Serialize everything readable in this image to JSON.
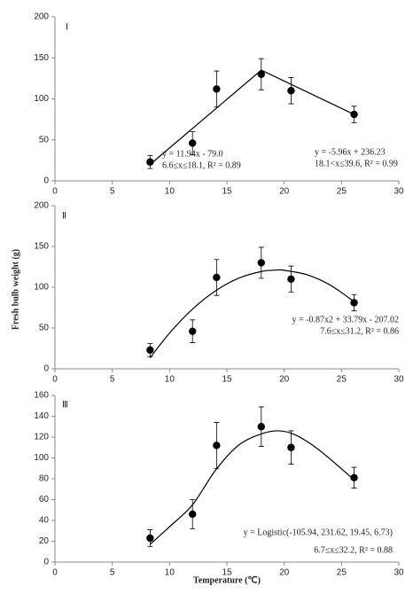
{
  "chart_data": [
    {
      "type": "scatter",
      "label": "Ⅰ",
      "color": "#000000",
      "x": [
        8.3,
        12.0,
        14.1,
        18.0,
        20.6,
        26.1
      ],
      "values": [
        23,
        46,
        112,
        130,
        110,
        81
      ],
      "errors": [
        8,
        14,
        22,
        19,
        16,
        10
      ],
      "fit": {
        "x": [
          8.3,
          18.0,
          26.1
        ],
        "values": [
          20,
          135,
          81
        ],
        "smooth": false
      },
      "annotations": [
        "y = 11.94x - 79.0",
        "6.6≤x≤18.1, R² = 0.89",
        "y = -5.96x + 236.23",
        "18.1<x≤39.6, R² = 0.99"
      ],
      "xlim": [
        0,
        30
      ],
      "xticks": [
        0,
        5,
        10,
        15,
        20,
        25,
        30
      ],
      "ylim": [
        0,
        200
      ],
      "yticks": [
        0,
        50,
        100,
        150,
        200
      ]
    },
    {
      "type": "scatter",
      "label": "Ⅱ",
      "color": "#000000",
      "y_label": "Fresh bulb weight (g)",
      "x": [
        8.3,
        12.0,
        14.1,
        18.0,
        20.6,
        26.1
      ],
      "values": [
        23,
        46,
        112,
        130,
        110,
        81
      ],
      "errors": [
        8,
        14,
        22,
        19,
        16,
        10
      ],
      "fit": {
        "x": [
          8.3,
          10,
          12,
          14,
          16,
          18,
          19.4,
          20,
          22,
          24,
          26.1
        ],
        "values": [
          13.5,
          43.9,
          73.2,
          95.5,
          110.9,
          119.3,
          121.1,
          120.8,
          115.3,
          102.8,
          82.3
        ],
        "smooth": true
      },
      "annotations": [
        "y = -0.87x2 + 33.79x - 207.02",
        "7.6≤x≤31.2, R² = 0.86"
      ],
      "xlim": [
        0,
        30
      ],
      "xticks": [
        0,
        5,
        10,
        15,
        20,
        25,
        30
      ],
      "ylim": [
        0,
        200
      ],
      "yticks": [
        0,
        50,
        100,
        150,
        200
      ]
    },
    {
      "type": "scatter",
      "label": "Ⅲ",
      "color": "#000000",
      "x_label": "Temperature (℃)",
      "x": [
        8.3,
        12.0,
        14.1,
        18.0,
        20.6,
        26.1
      ],
      "values": [
        23,
        46,
        112,
        130,
        110,
        81
      ],
      "errors": [
        8,
        14,
        22,
        19,
        16,
        10
      ],
      "fit": {
        "x": [
          8.3,
          10,
          12,
          14,
          16,
          18,
          19.5,
          21,
          23,
          26.1
        ],
        "values": [
          17,
          34,
          55,
          88,
          112,
          123,
          126,
          122,
          108,
          79
        ],
        "smooth": true
      },
      "annotations": [
        "y = Logistic(-105.94, 231.62, 19.45, 6.73)",
        "6.7≤x≤32.2, R² = 0.88"
      ],
      "xlim": [
        0,
        30
      ],
      "xticks": [
        0,
        5,
        10,
        15,
        20,
        25,
        30
      ],
      "ylim": [
        0,
        160
      ],
      "yticks": [
        0,
        20,
        40,
        60,
        80,
        100,
        120,
        140,
        160
      ]
    }
  ]
}
